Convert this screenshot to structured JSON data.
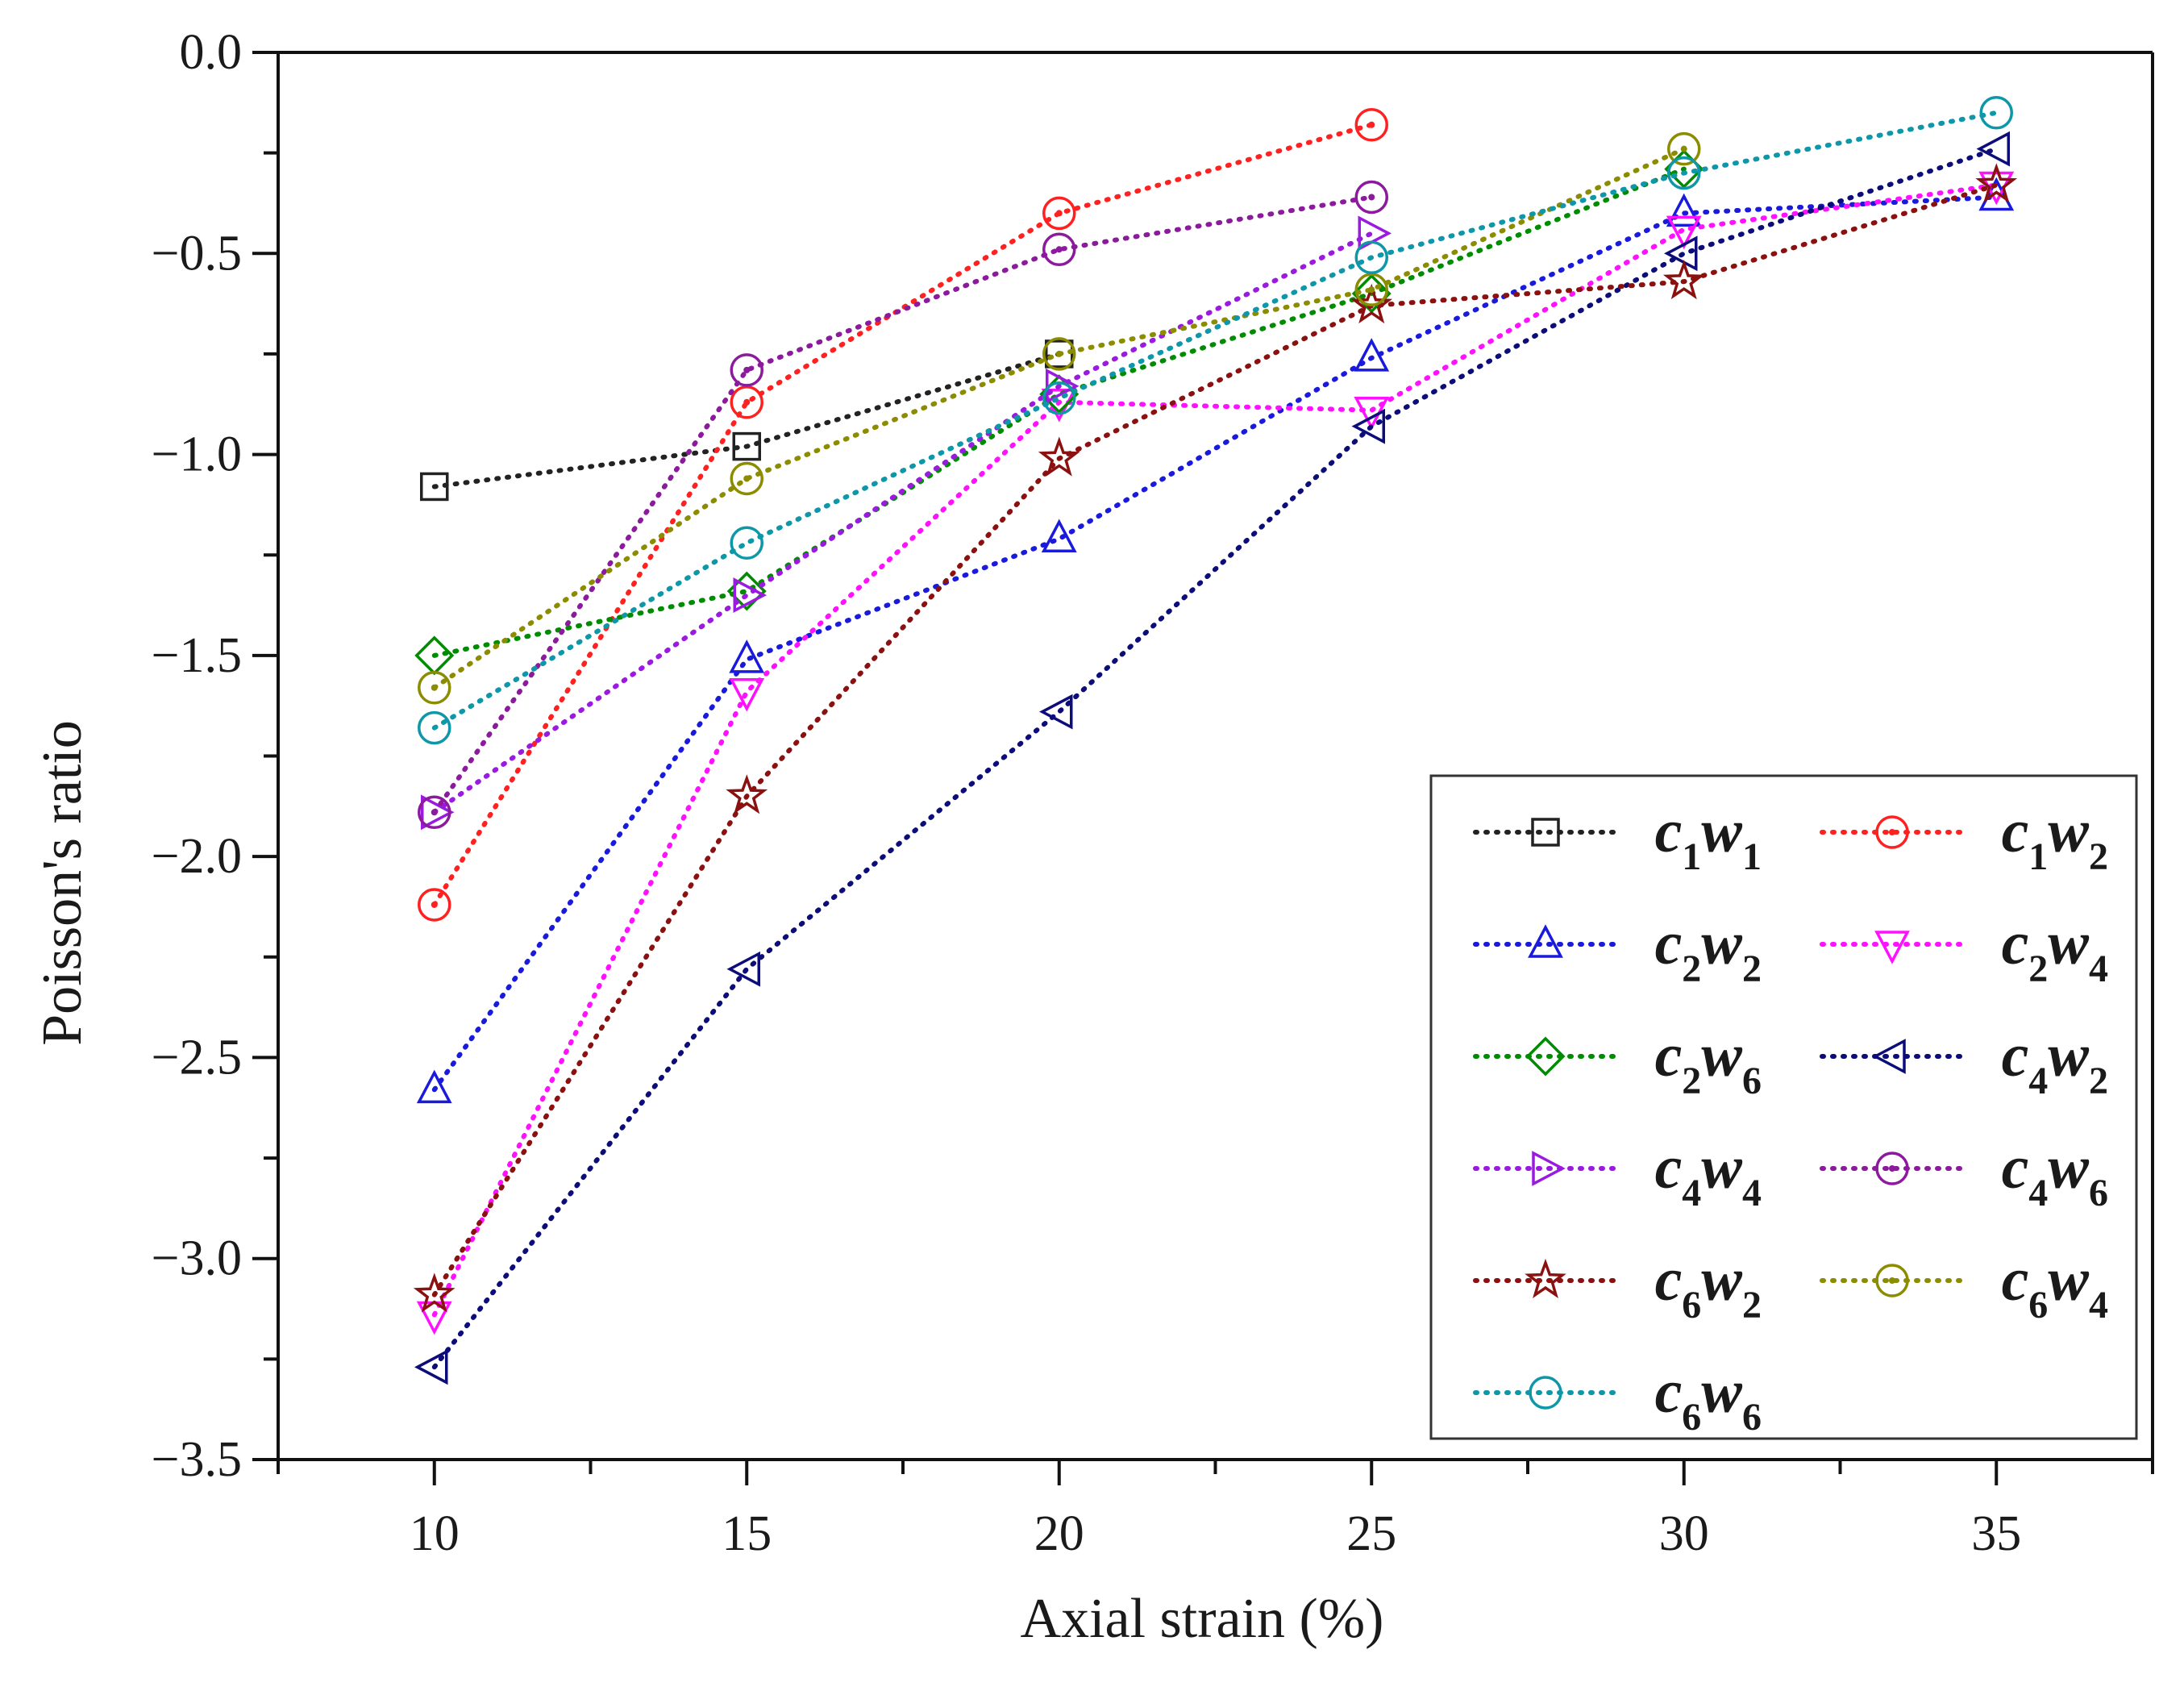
{
  "chart_data": {
    "type": "line",
    "title": "",
    "xlabel": "Axial strain (%)",
    "ylabel": "Poisson's ratio",
    "xlim": [
      7.5,
      37.5
    ],
    "ylim": [
      -3.5,
      0.0
    ],
    "xticks": [
      10,
      15,
      20,
      25,
      30,
      35
    ],
    "xtick_labels": [
      "10",
      "15",
      "20",
      "25",
      "30",
      "35"
    ],
    "yticks": [
      0.0,
      -0.5,
      -1.0,
      -1.5,
      -2.0,
      -2.5,
      -3.0,
      -3.5
    ],
    "ytick_labels": [
      "0.0",
      "−0.5",
      "−1.0",
      "−1.5",
      "−2.0",
      "−2.5",
      "−3.0",
      "−3.5"
    ],
    "grid": false,
    "legend_position": "bottom-right",
    "series": [
      {
        "name": "c1w1",
        "c": "1",
        "w": "1",
        "color": "#222222",
        "marker": "square",
        "x": [
          10,
          15,
          20
        ],
        "y": [
          -1.08,
          -0.98,
          -0.75
        ]
      },
      {
        "name": "c1w2",
        "c": "1",
        "w": "2",
        "color": "#ff2020",
        "marker": "circle-dot",
        "x": [
          10,
          15,
          20,
          25
        ],
        "y": [
          -2.12,
          -0.87,
          -0.4,
          -0.18
        ]
      },
      {
        "name": "c2w2",
        "c": "2",
        "w": "2",
        "color": "#1a1adc",
        "marker": "triangle-up",
        "x": [
          10,
          15,
          20,
          25,
          30,
          35
        ],
        "y": [
          -2.58,
          -1.51,
          -1.21,
          -0.76,
          -0.4,
          -0.36
        ]
      },
      {
        "name": "c2w4",
        "c": "2",
        "w": "4",
        "color": "#ff10ff",
        "marker": "triangle-down",
        "x": [
          10,
          15,
          20,
          25,
          30,
          35
        ],
        "y": [
          -3.14,
          -1.59,
          -0.87,
          -0.89,
          -0.44,
          -0.33
        ]
      },
      {
        "name": "c2w6",
        "c": "2",
        "w": "6",
        "color": "#008c00",
        "marker": "diamond",
        "x": [
          10,
          15,
          20,
          25,
          30
        ],
        "y": [
          -1.5,
          -1.34,
          -0.85,
          -0.6,
          -0.29
        ]
      },
      {
        "name": "c4w2",
        "c": "4",
        "w": "2",
        "color": "#0d0d7a",
        "marker": "triangle-left",
        "x": [
          10,
          15,
          20,
          25,
          30,
          35
        ],
        "y": [
          -3.27,
          -2.28,
          -1.64,
          -0.93,
          -0.5,
          -0.24
        ]
      },
      {
        "name": "c4w4",
        "c": "4",
        "w": "4",
        "color": "#9b1adf",
        "marker": "triangle-right",
        "x": [
          10,
          15,
          20,
          25
        ],
        "y": [
          -1.89,
          -1.35,
          -0.83,
          -0.45
        ]
      },
      {
        "name": "c4w6",
        "c": "4",
        "w": "6",
        "color": "#8c1a9c",
        "marker": "circle-dot",
        "x": [
          10,
          15,
          20,
          25
        ],
        "y": [
          -1.89,
          -0.79,
          -0.49,
          -0.36
        ]
      },
      {
        "name": "c6w2",
        "c": "6",
        "w": "2",
        "color": "#8b1010",
        "marker": "star",
        "x": [
          10,
          15,
          20,
          25,
          30,
          35
        ],
        "y": [
          -3.09,
          -1.85,
          -1.01,
          -0.63,
          -0.57,
          -0.33
        ]
      },
      {
        "name": "c6w4",
        "c": "6",
        "w": "4",
        "color": "#8c8c00",
        "marker": "circle-dot",
        "x": [
          10,
          15,
          20,
          25,
          30
        ],
        "y": [
          -1.58,
          -1.06,
          -0.75,
          -0.59,
          -0.24
        ]
      },
      {
        "name": "c6w6",
        "c": "6",
        "w": "6",
        "color": "#0e97a8",
        "marker": "circle",
        "x": [
          10,
          15,
          20,
          25,
          30,
          35
        ],
        "y": [
          -1.68,
          -1.22,
          -0.86,
          -0.51,
          -0.3,
          -0.15
        ]
      }
    ]
  }
}
